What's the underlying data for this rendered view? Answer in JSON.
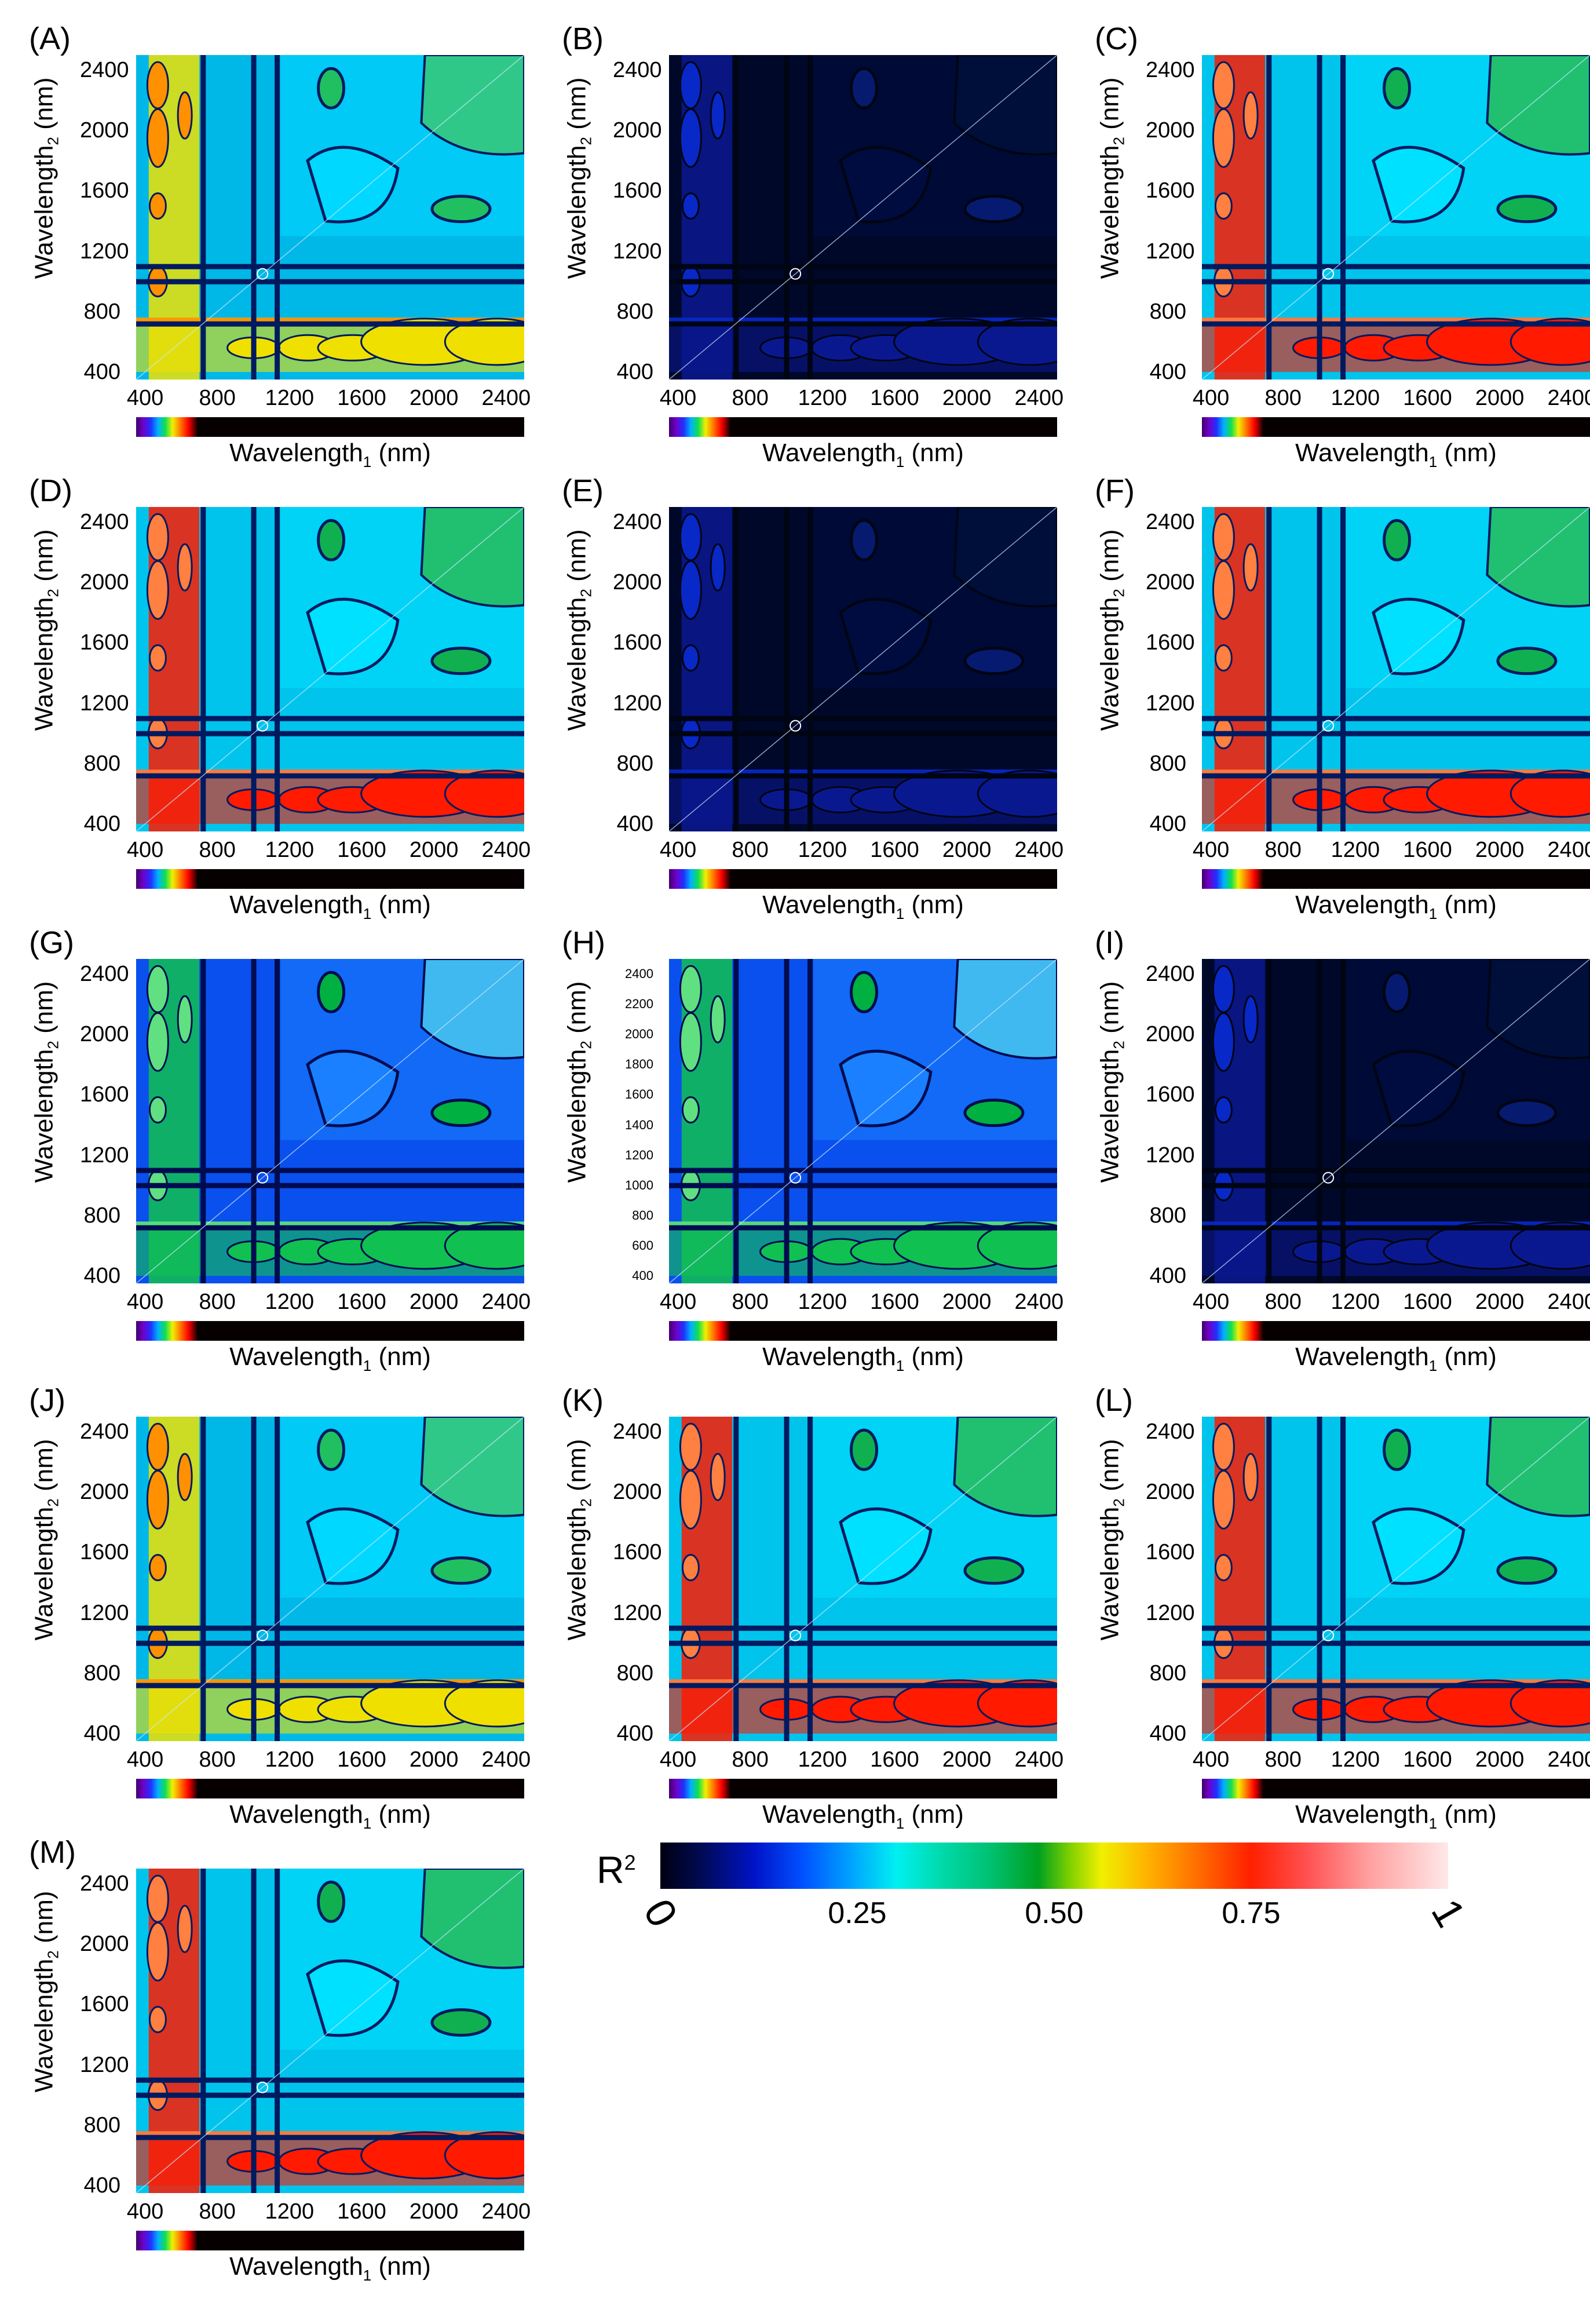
{
  "chart_data": {
    "type": "heatmap",
    "title": "",
    "xlabel": "Wavelength₁ (nm)",
    "ylabel": "Wavelength₂ (nm)",
    "x_ticks": [
      "400",
      "800",
      "1200",
      "1600",
      "2000",
      "2400"
    ],
    "y_ticks": [
      "400",
      "800",
      "1200",
      "1600",
      "2000",
      "2400"
    ],
    "h_y_ticks": [
      "400",
      "600",
      "800",
      "1000",
      "1200",
      "1400",
      "1600",
      "1800",
      "2000",
      "2200",
      "2400"
    ],
    "xlim": [
      350,
      2500
    ],
    "ylim": [
      350,
      2500
    ],
    "panels": [
      {
        "label": "(A)",
        "intensity": 0.78,
        "style": "yellow"
      },
      {
        "label": "(B)",
        "intensity": 0.03,
        "style": "dark"
      },
      {
        "label": "(C)",
        "intensity": 0.88,
        "style": "red"
      },
      {
        "label": "(D)",
        "intensity": 0.86,
        "style": "red"
      },
      {
        "label": "(E)",
        "intensity": 0.12,
        "style": "dark"
      },
      {
        "label": "(F)",
        "intensity": 0.86,
        "style": "red"
      },
      {
        "label": "(G)",
        "intensity": 0.45,
        "style": "blue"
      },
      {
        "label": "(H)",
        "intensity": 0.47,
        "style": "blue"
      },
      {
        "label": "(I)",
        "intensity": 0.09,
        "style": "dark"
      },
      {
        "label": "(J)",
        "intensity": 0.74,
        "style": "yellow"
      },
      {
        "label": "(K)",
        "intensity": 0.88,
        "style": "red"
      },
      {
        "label": "(L)",
        "intensity": 0.88,
        "style": "red"
      },
      {
        "label": "(M)",
        "intensity": 0.86,
        "style": "red"
      }
    ],
    "colorbar": {
      "label": "R",
      "label_sup": "2",
      "range": [
        0,
        1
      ],
      "ticks": [
        {
          "value": 0,
          "text": "0"
        },
        {
          "value": 0.25,
          "text": "0.25"
        },
        {
          "value": 0.5,
          "text": "0.50"
        },
        {
          "value": 0.75,
          "text": "0.75"
        },
        {
          "value": 1,
          "text": "1"
        }
      ]
    }
  }
}
